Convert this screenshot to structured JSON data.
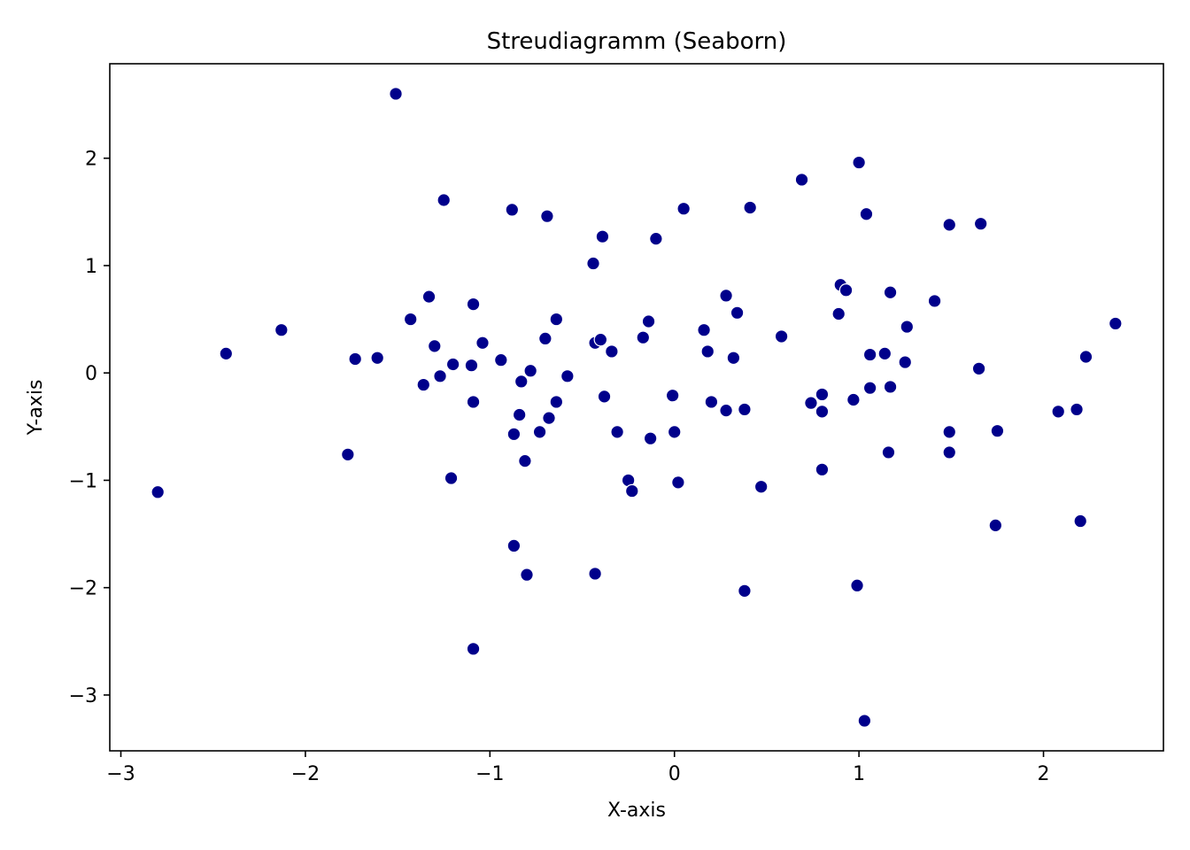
{
  "chart_data": {
    "type": "scatter",
    "title": "Streudiagramm (Seaborn)",
    "xlabel": "X-axis",
    "ylabel": "Y-axis",
    "xlim": [
      -3.06,
      2.65
    ],
    "ylim": [
      -3.52,
      2.88
    ],
    "xticks": [
      -3,
      -2,
      -1,
      0,
      1,
      2
    ],
    "yticks": [
      -3,
      -2,
      -1,
      0,
      1,
      2
    ],
    "xtick_labels": [
      "−3",
      "−2",
      "−1",
      "0",
      "1",
      "2"
    ],
    "ytick_labels": [
      "−3",
      "−2",
      "−1",
      "0",
      "1",
      "2"
    ],
    "grid": false,
    "point_color": "#00008b",
    "point_edge_color": "#ffffff",
    "points": [
      {
        "x": -2.8,
        "y": -1.11
      },
      {
        "x": -2.43,
        "y": 0.18
      },
      {
        "x": -2.13,
        "y": 0.4
      },
      {
        "x": -1.77,
        "y": -0.76
      },
      {
        "x": -1.73,
        "y": 0.13
      },
      {
        "x": -1.61,
        "y": 0.14
      },
      {
        "x": -1.51,
        "y": 2.6
      },
      {
        "x": -1.43,
        "y": 0.5
      },
      {
        "x": -1.36,
        "y": -0.11
      },
      {
        "x": -1.33,
        "y": 0.71
      },
      {
        "x": -1.3,
        "y": 0.25
      },
      {
        "x": -1.27,
        "y": -0.03
      },
      {
        "x": -1.25,
        "y": 1.61
      },
      {
        "x": -1.21,
        "y": -0.98
      },
      {
        "x": -1.2,
        "y": 0.08
      },
      {
        "x": -1.1,
        "y": 0.07
      },
      {
        "x": -1.09,
        "y": 0.64
      },
      {
        "x": -1.09,
        "y": -0.27
      },
      {
        "x": -1.09,
        "y": -2.57
      },
      {
        "x": -1.04,
        "y": 0.28
      },
      {
        "x": -0.94,
        "y": 0.12
      },
      {
        "x": -0.88,
        "y": 1.52
      },
      {
        "x": -0.87,
        "y": -0.57
      },
      {
        "x": -0.87,
        "y": -1.61
      },
      {
        "x": -0.84,
        "y": -0.39
      },
      {
        "x": -0.83,
        "y": -0.08
      },
      {
        "x": -0.81,
        "y": -0.82
      },
      {
        "x": -0.8,
        "y": -1.88
      },
      {
        "x": -0.78,
        "y": 0.02
      },
      {
        "x": -0.73,
        "y": -0.55
      },
      {
        "x": -0.7,
        "y": 0.32
      },
      {
        "x": -0.69,
        "y": 1.46
      },
      {
        "x": -0.68,
        "y": -0.42
      },
      {
        "x": -0.64,
        "y": 0.5
      },
      {
        "x": -0.64,
        "y": -0.27
      },
      {
        "x": -0.58,
        "y": -0.03
      },
      {
        "x": -0.44,
        "y": 1.02
      },
      {
        "x": -0.43,
        "y": 0.28
      },
      {
        "x": -0.43,
        "y": -1.87
      },
      {
        "x": -0.4,
        "y": 0.31
      },
      {
        "x": -0.39,
        "y": 1.27
      },
      {
        "x": -0.38,
        "y": -0.22
      },
      {
        "x": -0.34,
        "y": 0.2
      },
      {
        "x": -0.31,
        "y": -0.55
      },
      {
        "x": -0.25,
        "y": -1.0
      },
      {
        "x": -0.23,
        "y": -1.1
      },
      {
        "x": -0.17,
        "y": 0.33
      },
      {
        "x": -0.14,
        "y": 0.48
      },
      {
        "x": -0.13,
        "y": -0.61
      },
      {
        "x": -0.1,
        "y": 1.25
      },
      {
        "x": -0.01,
        "y": -0.21
      },
      {
        "x": 0.0,
        "y": -0.55
      },
      {
        "x": 0.02,
        "y": -1.02
      },
      {
        "x": 0.05,
        "y": 1.53
      },
      {
        "x": 0.16,
        "y": 0.4
      },
      {
        "x": 0.18,
        "y": 0.2
      },
      {
        "x": 0.2,
        "y": -0.27
      },
      {
        "x": 0.28,
        "y": 0.72
      },
      {
        "x": 0.28,
        "y": -0.35
      },
      {
        "x": 0.32,
        "y": 0.14
      },
      {
        "x": 0.34,
        "y": 0.56
      },
      {
        "x": 0.38,
        "y": -0.34
      },
      {
        "x": 0.38,
        "y": -2.03
      },
      {
        "x": 0.41,
        "y": 1.54
      },
      {
        "x": 0.47,
        "y": -1.06
      },
      {
        "x": 0.58,
        "y": 0.34
      },
      {
        "x": 0.69,
        "y": 1.8
      },
      {
        "x": 0.74,
        "y": -0.28
      },
      {
        "x": 0.8,
        "y": -0.2
      },
      {
        "x": 0.8,
        "y": -0.36
      },
      {
        "x": 0.8,
        "y": -0.9
      },
      {
        "x": 0.89,
        "y": 0.55
      },
      {
        "x": 0.9,
        "y": 0.82
      },
      {
        "x": 0.93,
        "y": 0.77
      },
      {
        "x": 0.97,
        "y": -0.25
      },
      {
        "x": 0.99,
        "y": -1.98
      },
      {
        "x": 1.0,
        "y": 1.96
      },
      {
        "x": 1.04,
        "y": 1.48
      },
      {
        "x": 1.03,
        "y": -3.24
      },
      {
        "x": 1.06,
        "y": 0.17
      },
      {
        "x": 1.06,
        "y": -0.14
      },
      {
        "x": 1.14,
        "y": 0.18
      },
      {
        "x": 1.16,
        "y": -0.74
      },
      {
        "x": 1.17,
        "y": 0.75
      },
      {
        "x": 1.17,
        "y": -0.13
      },
      {
        "x": 1.25,
        "y": 0.1
      },
      {
        "x": 1.26,
        "y": 0.43
      },
      {
        "x": 1.41,
        "y": 0.67
      },
      {
        "x": 1.49,
        "y": 1.38
      },
      {
        "x": 1.49,
        "y": -0.55
      },
      {
        "x": 1.49,
        "y": -0.74
      },
      {
        "x": 1.65,
        "y": 0.04
      },
      {
        "x": 1.66,
        "y": 1.39
      },
      {
        "x": 1.74,
        "y": -1.42
      },
      {
        "x": 1.75,
        "y": -0.54
      },
      {
        "x": 2.08,
        "y": -0.36
      },
      {
        "x": 2.18,
        "y": -0.34
      },
      {
        "x": 2.2,
        "y": -1.38
      },
      {
        "x": 2.23,
        "y": 0.15
      },
      {
        "x": 2.39,
        "y": 0.46
      }
    ]
  }
}
